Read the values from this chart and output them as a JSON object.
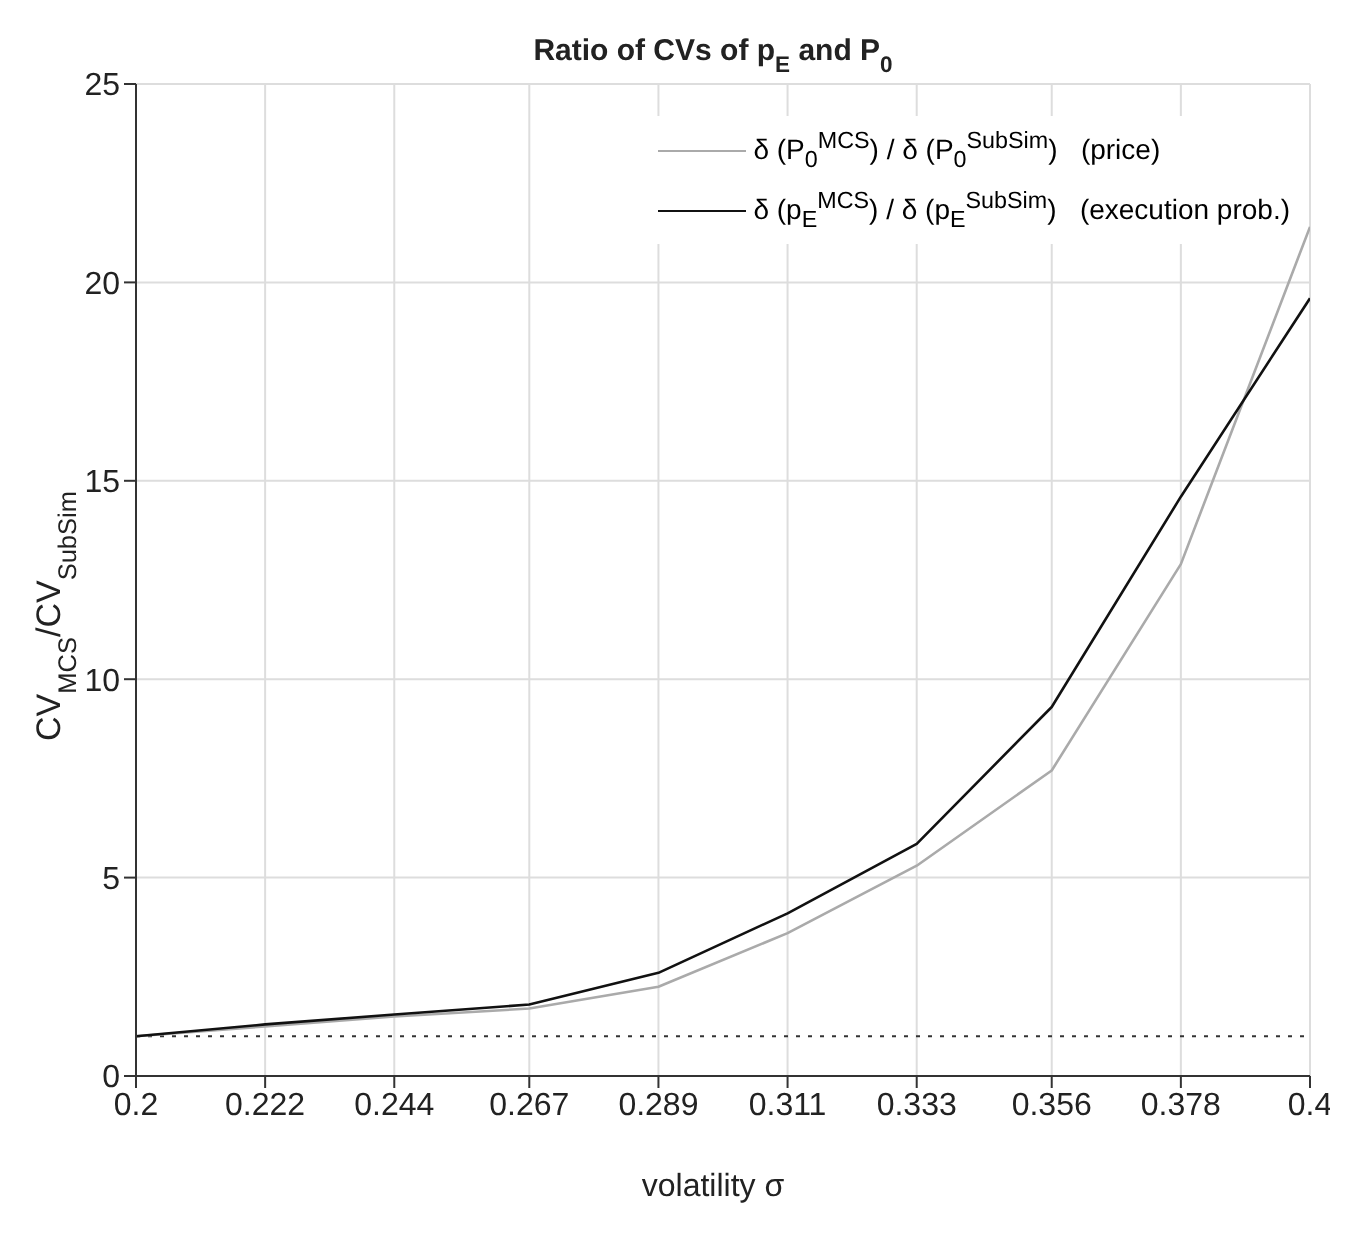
{
  "chart_data": {
    "type": "line",
    "title": "Ratio of CVs of p$_{E}$ and P$_{0}$",
    "xlabel": "volatility σ",
    "ylabel": "CV$_{MCS}$/CV$_{SubSim}$",
    "x": [
      0.2,
      0.222,
      0.244,
      0.267,
      0.289,
      0.311,
      0.333,
      0.356,
      0.378,
      0.4
    ],
    "series": [
      {
        "name": "δ (P$_{0}$$^{MCS}$) / δ (P$_{0}$$^{SubSim}$)   (price)",
        "color": "#aaaaaa",
        "values": [
          1.0,
          1.25,
          1.5,
          1.7,
          2.25,
          3.6,
          5.3,
          7.7,
          12.9,
          21.4
        ]
      },
      {
        "name": "δ (p$_{E}$$^{MCS}$) / δ (p$_{E}$$^{SubSim}$)   (execution prob.)",
        "color": "#111111",
        "values": [
          1.0,
          1.3,
          1.55,
          1.8,
          2.6,
          4.1,
          5.85,
          9.3,
          14.6,
          19.6
        ]
      }
    ],
    "xlim": [
      0.2,
      0.4
    ],
    "xticks": [
      0.2,
      0.222,
      0.244,
      0.267,
      0.289,
      0.311,
      0.333,
      0.356,
      0.378,
      0.4
    ],
    "ylim": [
      0,
      25
    ],
    "yticks": [
      0,
      5,
      10,
      15,
      20,
      25
    ],
    "ref_lines": [
      {
        "axis": "y",
        "value": 1,
        "color": "#333333",
        "line_style": "dotted"
      }
    ],
    "grid": true,
    "legend": "top right",
    "marker": "none",
    "line_style": "solid"
  }
}
